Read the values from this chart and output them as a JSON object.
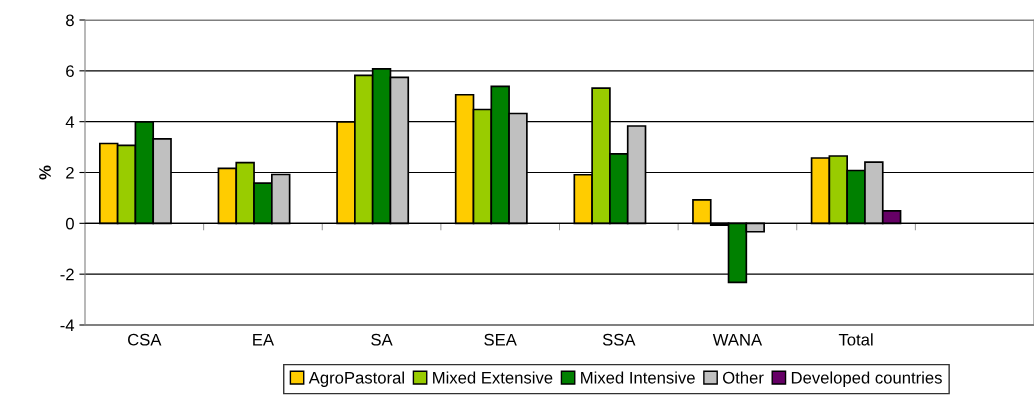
{
  "chart_data": {
    "type": "bar",
    "ylabel": "%",
    "categories": [
      "CSA",
      "EA",
      "SA",
      "SEA",
      "SSA",
      "WANA",
      "Total",
      null
    ],
    "series": [
      {
        "name": "AgroPastoral",
        "color": "#ffcc00",
        "values": [
          3.14,
          2.16,
          3.99,
          5.06,
          1.91,
          0.92,
          2.57,
          null
        ]
      },
      {
        "name": "Mixed Extensive",
        "color": "#99cc00",
        "values": [
          3.07,
          2.39,
          5.82,
          4.48,
          5.32,
          -0.07,
          2.65,
          null
        ]
      },
      {
        "name": "Mixed Intensive",
        "color": "#008000",
        "values": [
          3.99,
          1.58,
          6.08,
          5.39,
          2.73,
          -2.32,
          2.08,
          null
        ]
      },
      {
        "name": "Other",
        "color": "#c0c0c0",
        "values": [
          3.32,
          1.92,
          5.74,
          4.32,
          3.83,
          -0.33,
          2.41,
          null
        ]
      },
      {
        "name": "Developed countries",
        "color": "#660066",
        "values": [
          null,
          null,
          null,
          null,
          null,
          null,
          0.49,
          null
        ]
      }
    ],
    "ylim": [
      -4,
      8
    ],
    "yticks": [
      -4,
      -2,
      0,
      2,
      4,
      6,
      8
    ],
    "grid": "y",
    "legend": "bottom"
  }
}
